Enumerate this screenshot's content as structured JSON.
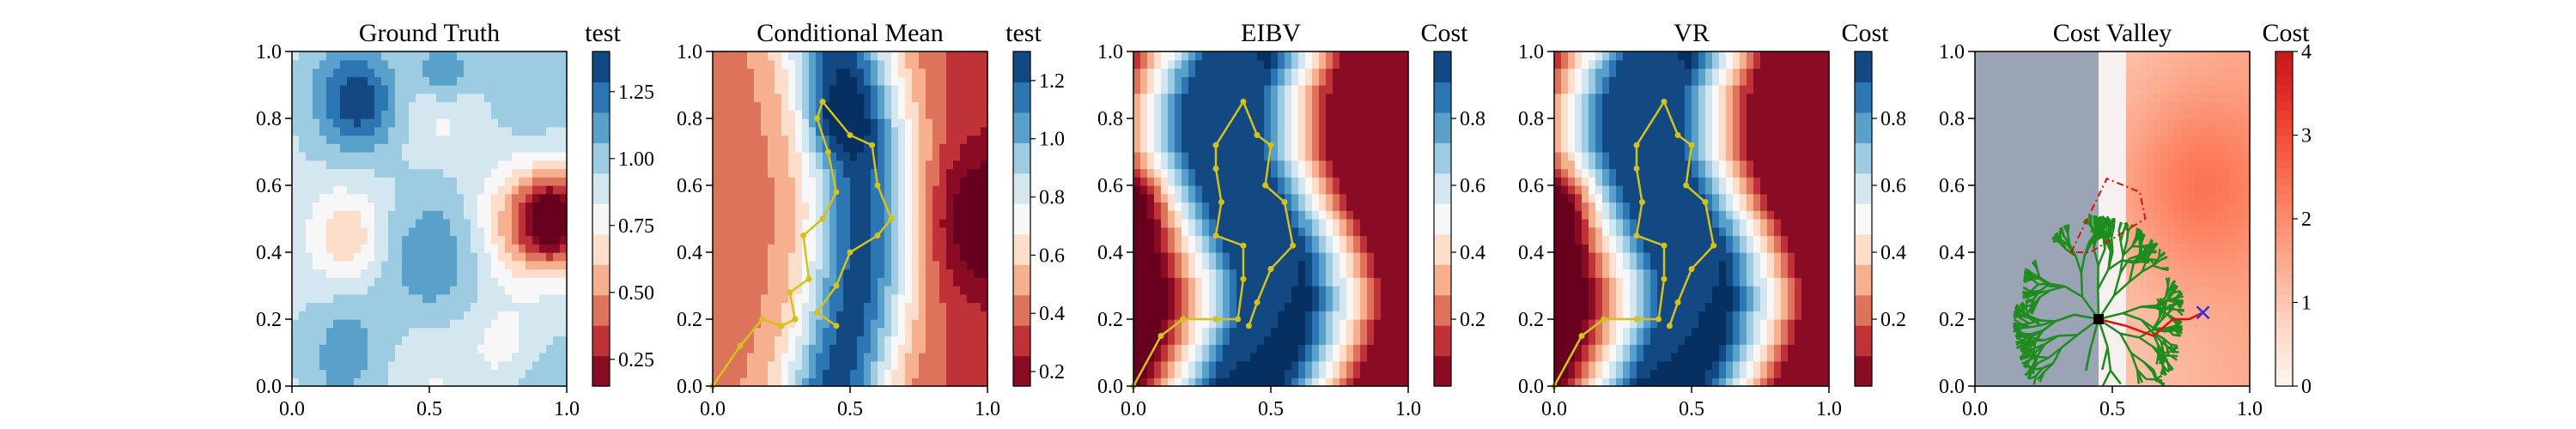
{
  "chart_data": [
    {
      "type": "heatmap",
      "title": "Ground Truth",
      "colorbar_label": "test",
      "colormap": "RdBu",
      "xlim": [
        0.0,
        1.0
      ],
      "ylim": [
        0.0,
        1.0
      ],
      "xticks": [
        "0.0",
        "0.5",
        "1.0"
      ],
      "yticks": [
        "0.0",
        "0.2",
        "0.4",
        "0.6",
        "0.8",
        "1.0"
      ],
      "clim": [
        0.15,
        1.4
      ],
      "cbar_ticks": [
        0.25,
        0.5,
        0.75,
        1.0,
        1.25
      ],
      "cbar_tick_labels": [
        "0.25",
        "0.50",
        "0.75",
        "1.00",
        "1.25"
      ],
      "field_peaks": [
        {
          "x": 0.95,
          "y": 0.5,
          "radius": 0.12,
          "value": 0.2
        },
        {
          "x": 0.25,
          "y": 0.85,
          "radius": 0.14,
          "value": 1.35
        },
        {
          "x": 0.55,
          "y": 0.93,
          "radius": 0.12,
          "value": 1.35
        }
      ],
      "path": []
    },
    {
      "type": "heatmap",
      "title": "Conditional Mean",
      "colorbar_label": "test",
      "colormap": "RdBu",
      "xlim": [
        0.0,
        1.0
      ],
      "ylim": [
        0.0,
        1.0
      ],
      "xticks": [
        "0.0",
        "0.5",
        "1.0"
      ],
      "yticks": [
        "0.0",
        "0.2",
        "0.4",
        "0.6",
        "0.8",
        "1.0"
      ],
      "clim": [
        0.15,
        1.3
      ],
      "cbar_ticks": [
        0.2,
        0.4,
        0.6,
        0.8,
        1.0,
        1.2
      ],
      "cbar_tick_labels": [
        "0.2",
        "0.4",
        "0.6",
        "0.8",
        "1.0",
        "1.2"
      ],
      "path_color": "#d4c21a",
      "path": [
        [
          0.0,
          0.0
        ],
        [
          0.1,
          0.12
        ],
        [
          0.18,
          0.2
        ],
        [
          0.25,
          0.18
        ],
        [
          0.3,
          0.2
        ],
        [
          0.28,
          0.28
        ],
        [
          0.35,
          0.32
        ],
        [
          0.33,
          0.45
        ],
        [
          0.4,
          0.5
        ],
        [
          0.45,
          0.58
        ],
        [
          0.42,
          0.7
        ],
        [
          0.38,
          0.8
        ],
        [
          0.4,
          0.85
        ],
        [
          0.5,
          0.75
        ],
        [
          0.58,
          0.72
        ],
        [
          0.6,
          0.6
        ],
        [
          0.65,
          0.5
        ],
        [
          0.6,
          0.45
        ],
        [
          0.5,
          0.4
        ],
        [
          0.45,
          0.3
        ],
        [
          0.38,
          0.22
        ],
        [
          0.45,
          0.18
        ]
      ]
    },
    {
      "type": "heatmap",
      "title": "EIBV",
      "colorbar_label": "Cost",
      "colormap": "RdBu",
      "xlim": [
        0.0,
        1.0
      ],
      "ylim": [
        0.0,
        1.0
      ],
      "xticks": [
        "0.0",
        "0.5",
        "1.0"
      ],
      "yticks": [
        "0.0",
        "0.2",
        "0.4",
        "0.6",
        "0.8",
        "1.0"
      ],
      "clim": [
        0.0,
        1.0
      ],
      "cbar_ticks": [
        0.2,
        0.4,
        0.6,
        0.8
      ],
      "cbar_tick_labels": [
        "0.2",
        "0.4",
        "0.6",
        "0.8"
      ],
      "path_color": "#d4c21a",
      "path": [
        [
          0.0,
          0.0
        ],
        [
          0.1,
          0.15
        ],
        [
          0.18,
          0.2
        ],
        [
          0.3,
          0.2
        ],
        [
          0.38,
          0.2
        ],
        [
          0.4,
          0.32
        ],
        [
          0.4,
          0.42
        ],
        [
          0.3,
          0.45
        ],
        [
          0.32,
          0.55
        ],
        [
          0.3,
          0.65
        ],
        [
          0.3,
          0.72
        ],
        [
          0.4,
          0.85
        ],
        [
          0.45,
          0.75
        ],
        [
          0.5,
          0.72
        ],
        [
          0.48,
          0.6
        ],
        [
          0.55,
          0.55
        ],
        [
          0.58,
          0.42
        ],
        [
          0.5,
          0.35
        ],
        [
          0.45,
          0.25
        ],
        [
          0.42,
          0.18
        ]
      ]
    },
    {
      "type": "heatmap",
      "title": "VR",
      "colorbar_label": "Cost",
      "colormap": "RdBu",
      "xlim": [
        0.0,
        1.0
      ],
      "ylim": [
        0.0,
        1.0
      ],
      "xticks": [
        "0.0",
        "0.5",
        "1.0"
      ],
      "yticks": [
        "0.0",
        "0.2",
        "0.4",
        "0.6",
        "0.8",
        "1.0"
      ],
      "clim": [
        0.0,
        1.0
      ],
      "cbar_ticks": [
        0.2,
        0.4,
        0.6,
        0.8
      ],
      "cbar_tick_labels": [
        "0.2",
        "0.4",
        "0.6",
        "0.8"
      ],
      "path_color": "#d4c21a",
      "path": [
        [
          0.0,
          0.0
        ],
        [
          0.1,
          0.15
        ],
        [
          0.18,
          0.2
        ],
        [
          0.3,
          0.2
        ],
        [
          0.38,
          0.2
        ],
        [
          0.4,
          0.32
        ],
        [
          0.4,
          0.42
        ],
        [
          0.3,
          0.45
        ],
        [
          0.32,
          0.55
        ],
        [
          0.3,
          0.65
        ],
        [
          0.3,
          0.72
        ],
        [
          0.4,
          0.85
        ],
        [
          0.45,
          0.75
        ],
        [
          0.5,
          0.72
        ],
        [
          0.48,
          0.6
        ],
        [
          0.55,
          0.55
        ],
        [
          0.58,
          0.42
        ],
        [
          0.5,
          0.35
        ],
        [
          0.45,
          0.25
        ],
        [
          0.42,
          0.18
        ]
      ]
    },
    {
      "type": "heatmap",
      "title": "Cost Valley",
      "colorbar_label": "Cost",
      "colormap": "Reds",
      "xlim": [
        0.0,
        1.0
      ],
      "ylim": [
        0.0,
        1.0
      ],
      "xticks": [
        "0.0",
        "0.5",
        "1.0"
      ],
      "yticks": [
        "0.0",
        "0.2",
        "0.4",
        "0.6",
        "0.8",
        "1.0"
      ],
      "clim": [
        0.0,
        4.0
      ],
      "cbar_ticks": [
        0,
        1,
        2,
        3,
        4
      ],
      "cbar_tick_labels": [
        "0",
        "1",
        "2",
        "3",
        "4"
      ],
      "tree_color": "#1e8c1e",
      "path_color": "#e01010",
      "polygon_color": "#e01010",
      "start": [
        0.45,
        0.2
      ],
      "target": [
        0.83,
        0.22
      ],
      "path": [
        [
          0.45,
          0.2
        ],
        [
          0.55,
          0.18
        ],
        [
          0.65,
          0.15
        ],
        [
          0.72,
          0.2
        ],
        [
          0.78,
          0.2
        ],
        [
          0.83,
          0.22
        ]
      ],
      "polygon": [
        [
          0.35,
          0.4
        ],
        [
          0.48,
          0.62
        ],
        [
          0.6,
          0.58
        ],
        [
          0.62,
          0.5
        ],
        [
          0.42,
          0.4
        ]
      ]
    }
  ]
}
